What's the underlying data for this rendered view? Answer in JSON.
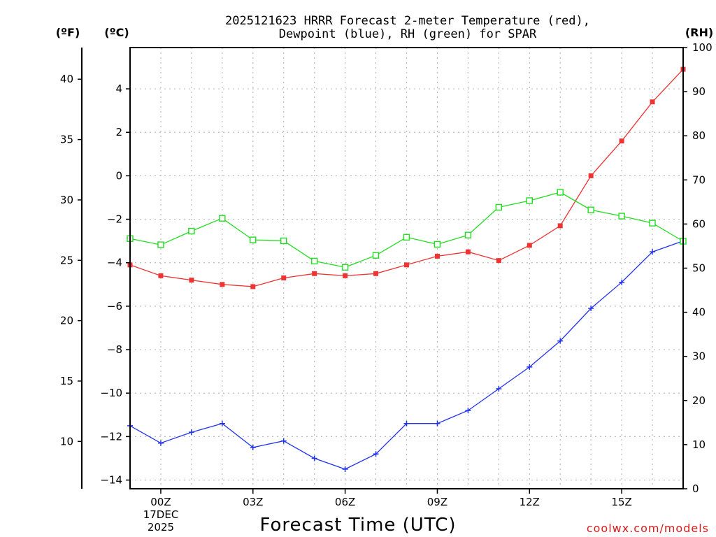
{
  "chart_data": {
    "type": "line",
    "title_lines": [
      "2025121623 HRRR Forecast 2-meter Temperature (red),",
      "Dewpoint (blue), RH (green) for SPAR"
    ],
    "xlabel": "Forecast Time (UTC)",
    "credit": "coolwx.com/models",
    "units": {
      "fahrenheit": "(ºF)",
      "celsius": "(ºC)",
      "rh": "(RH)"
    },
    "x_hours": [
      -1,
      0,
      1,
      2,
      3,
      4,
      5,
      6,
      7,
      8,
      9,
      10,
      11,
      12,
      13,
      14,
      15,
      16,
      17
    ],
    "x_range": [
      -1,
      17
    ],
    "x_ticks": [
      {
        "hour": 0,
        "label": "00Z"
      },
      {
        "hour": 3,
        "label": "03Z"
      },
      {
        "hour": 6,
        "label": "06Z"
      },
      {
        "hour": 9,
        "label": "09Z"
      },
      {
        "hour": 12,
        "label": "12Z"
      },
      {
        "hour": 15,
        "label": "15Z"
      }
    ],
    "date_label": [
      "17DEC",
      "2025"
    ],
    "celsius_range": [
      -14.4,
      5.9
    ],
    "celsius_ticks": [
      4,
      2,
      0,
      -2,
      -4,
      -6,
      -8,
      -10,
      -12,
      -14
    ],
    "fahrenheit_ticks": [
      40,
      35,
      30,
      25,
      20,
      15,
      10
    ],
    "rh_range": [
      0,
      100
    ],
    "rh_ticks": [
      100,
      90,
      80,
      70,
      60,
      50,
      40,
      30,
      20,
      10,
      0
    ],
    "series": [
      {
        "name": "Temperature",
        "axis": "celsius",
        "color": "#ee3333",
        "marker": "filled-square",
        "values": [
          -4.1,
          -4.6,
          -4.8,
          -5.0,
          -5.1,
          -4.7,
          -4.5,
          -4.6,
          -4.5,
          -4.1,
          -3.7,
          -3.5,
          -3.9,
          -3.2,
          -2.3,
          0.0,
          1.6,
          3.4,
          4.9
        ]
      },
      {
        "name": "Dewpoint",
        "axis": "celsius",
        "color": "#2233ee",
        "marker": "plus",
        "values": [
          -11.5,
          -12.3,
          -11.8,
          -11.4,
          -12.5,
          -12.2,
          -13.0,
          -13.5,
          -12.8,
          -11.4,
          -11.4,
          -10.8,
          -9.8,
          -8.8,
          -7.6,
          -6.1,
          -4.9,
          -3.5,
          -3.0
        ]
      },
      {
        "name": "RH",
        "axis": "rh",
        "color": "#22dd22",
        "marker": "open-square",
        "values": [
          56.7,
          55.3,
          58.4,
          61.3,
          56.4,
          56.2,
          51.6,
          50.2,
          52.9,
          57.0,
          55.4,
          57.5,
          63.8,
          65.3,
          67.2,
          63.2,
          61.8,
          60.2,
          56.1
        ]
      }
    ]
  }
}
